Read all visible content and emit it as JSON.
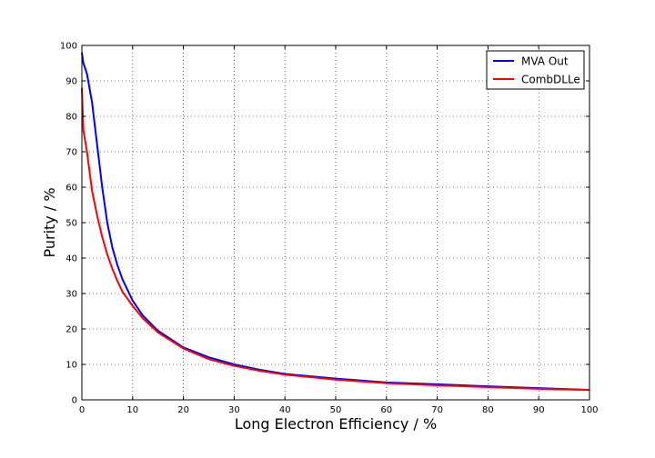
{
  "chart_data": {
    "type": "line",
    "title": "",
    "xlabel": "Long Electron Efficiency / %",
    "ylabel": "Purity / %",
    "xlim": [
      0,
      100
    ],
    "ylim": [
      0,
      100
    ],
    "xticks": [
      0,
      10,
      20,
      30,
      40,
      50,
      60,
      70,
      80,
      90,
      100
    ],
    "yticks": [
      0,
      10,
      20,
      30,
      40,
      50,
      60,
      70,
      80,
      90,
      100
    ],
    "grid": true,
    "legend_position": "top-right",
    "series": [
      {
        "name": "MVA Out",
        "color": "#0000ff",
        "points": [
          [
            0,
            98
          ],
          [
            0.3,
            95
          ],
          [
            1,
            92
          ],
          [
            2,
            84
          ],
          [
            3,
            72
          ],
          [
            4,
            60
          ],
          [
            5,
            50
          ],
          [
            6,
            43
          ],
          [
            7,
            38
          ],
          [
            8,
            34
          ],
          [
            10,
            28
          ],
          [
            12,
            23.8
          ],
          [
            15,
            19.5
          ],
          [
            20,
            14.8
          ],
          [
            25,
            12
          ],
          [
            30,
            10
          ],
          [
            35,
            8.5
          ],
          [
            40,
            7.3
          ],
          [
            50,
            6
          ],
          [
            60,
            4.9
          ],
          [
            70,
            4.4
          ],
          [
            80,
            3.8
          ],
          [
            90,
            3.3
          ],
          [
            100,
            2.8
          ]
        ]
      },
      {
        "name": "CombDLLe",
        "color": "#ff0000",
        "points": [
          [
            0,
            88
          ],
          [
            0.3,
            76
          ],
          [
            1,
            70
          ],
          [
            2,
            59
          ],
          [
            3,
            52
          ],
          [
            4,
            46
          ],
          [
            5,
            41
          ],
          [
            6,
            37
          ],
          [
            7,
            33.5
          ],
          [
            8,
            30.5
          ],
          [
            10,
            26.5
          ],
          [
            12,
            23
          ],
          [
            15,
            19
          ],
          [
            20,
            14.5
          ],
          [
            25,
            11.5
          ],
          [
            30,
            9.6
          ],
          [
            35,
            8.2
          ],
          [
            40,
            7.1
          ],
          [
            50,
            5.7
          ],
          [
            60,
            4.7
          ],
          [
            70,
            4.1
          ],
          [
            80,
            3.6
          ],
          [
            90,
            3.1
          ],
          [
            100,
            2.8
          ]
        ]
      }
    ]
  }
}
